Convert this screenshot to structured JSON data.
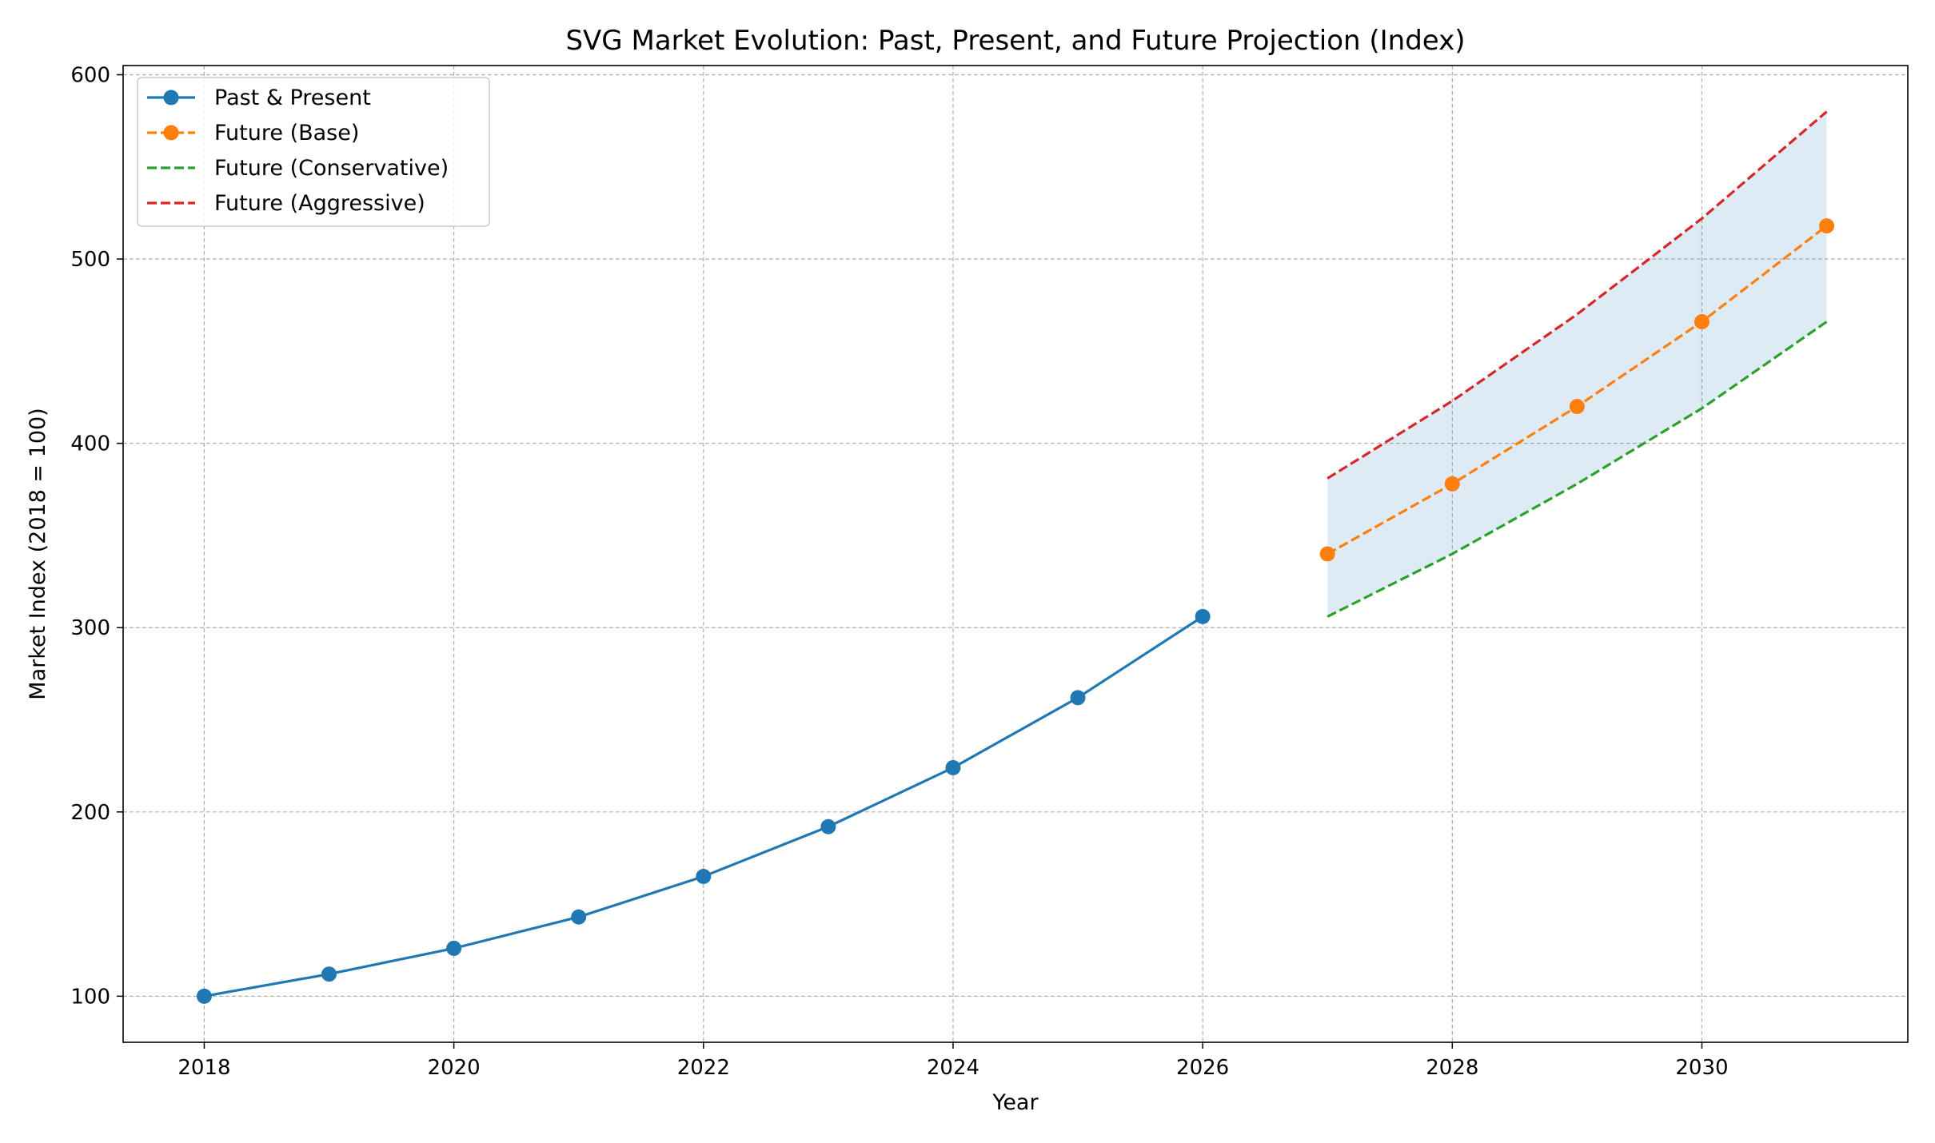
{
  "chart_data": {
    "type": "line",
    "title": "SVG Market Evolution: Past, Present, and Future Projection (Index)",
    "xlabel": "Year",
    "ylabel": "Market Index (2018 = 100)",
    "xlim": [
      2017.35,
      2031.65
    ],
    "ylim": [
      75,
      605
    ],
    "xticks": [
      2018,
      2020,
      2022,
      2024,
      2026,
      2028,
      2030
    ],
    "yticks": [
      100,
      200,
      300,
      400,
      500,
      600
    ],
    "grid": true,
    "legend_position": "top-left",
    "series": [
      {
        "name": "Past & Present",
        "color": "#1f77b4",
        "style": "solid",
        "markers": true,
        "x": [
          2018,
          2019,
          2020,
          2021,
          2022,
          2023,
          2024,
          2025,
          2026
        ],
        "values": [
          100,
          112,
          126,
          143,
          165,
          192,
          224,
          262,
          306
        ]
      },
      {
        "name": "Future (Base)",
        "color": "#ff7f0e",
        "style": "dashed",
        "markers": true,
        "x": [
          2027,
          2028,
          2029,
          2030,
          2031
        ],
        "values": [
          340,
          378,
          420,
          466,
          518
        ]
      },
      {
        "name": "Future (Conservative)",
        "color": "#2ca02c",
        "style": "dashed",
        "markers": false,
        "x": [
          2027,
          2028,
          2029,
          2030,
          2031
        ],
        "values": [
          306,
          340,
          378,
          419,
          466
        ]
      },
      {
        "name": "Future (Aggressive)",
        "color": "#d62728",
        "style": "dashed",
        "markers": false,
        "x": [
          2027,
          2028,
          2029,
          2030,
          2031
        ],
        "values": [
          381,
          423,
          470,
          522,
          580
        ]
      }
    ],
    "band": {
      "between": [
        "Future (Conservative)",
        "Future (Aggressive)"
      ],
      "color": "#1f77b4",
      "opacity": 0.15
    }
  }
}
